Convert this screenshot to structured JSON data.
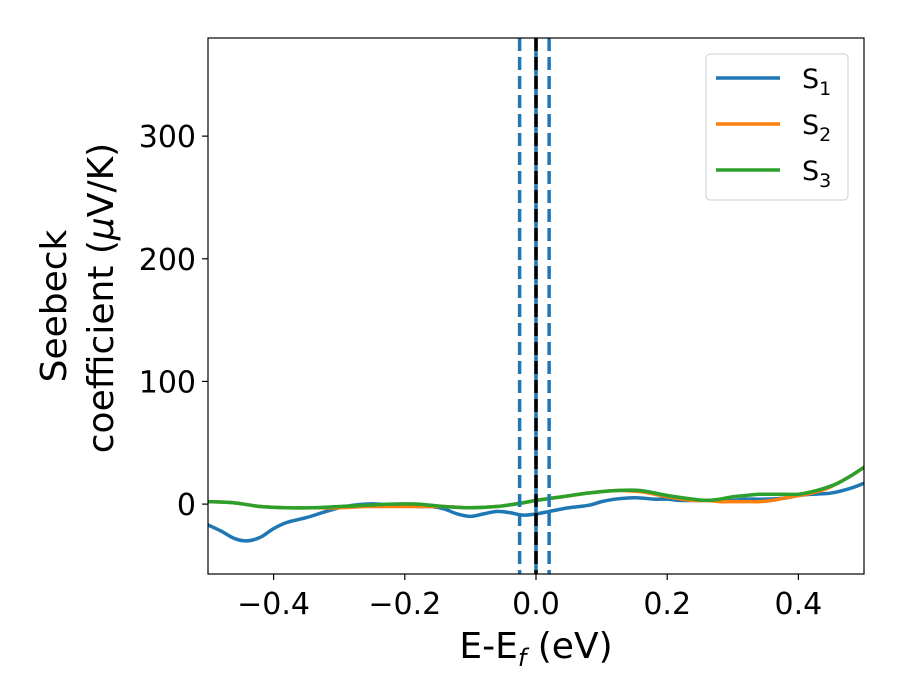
{
  "chart_data": {
    "type": "line",
    "title": "",
    "xlabel": "E-E",
    "xlabel_sub": "f",
    "xlabel_unit": " (eV)",
    "ylabel_line1": "Seebeck",
    "ylabel_line2_prefix": "coefficient  (",
    "ylabel_mu": "μ",
    "ylabel_line2_suffix": "V/K)",
    "xlim": [
      -0.5,
      0.5
    ],
    "ylim": [
      -57,
      380
    ],
    "xticks": [
      -0.4,
      -0.2,
      0.0,
      0.2,
      0.4
    ],
    "xtick_labels": [
      "−0.4",
      "−0.2",
      "0.0",
      "0.2",
      "0.4"
    ],
    "yticks": [
      0,
      100,
      200,
      300
    ],
    "ytick_labels": [
      "0",
      "100",
      "200",
      "300"
    ],
    "grid": false,
    "legend_position": "top-right",
    "vlines": [
      {
        "x": -0.025,
        "style": "dashed",
        "color": "#1f77b4"
      },
      {
        "x": 0.0,
        "style": "solid",
        "color": "#1f77b4"
      },
      {
        "x": 0.0,
        "style": "dashed",
        "color": "#000000"
      },
      {
        "x": 0.02,
        "style": "dashed",
        "color": "#1f77b4"
      }
    ],
    "series": [
      {
        "name": "S",
        "sub": "1",
        "color": "#1f77b4",
        "x": [
          -0.5,
          -0.48,
          -0.46,
          -0.44,
          -0.42,
          -0.4,
          -0.38,
          -0.35,
          -0.32,
          -0.3,
          -0.28,
          -0.26,
          -0.24,
          -0.22,
          -0.2,
          -0.18,
          -0.16,
          -0.14,
          -0.12,
          -0.1,
          -0.08,
          -0.06,
          -0.04,
          -0.02,
          0.0,
          0.02,
          0.05,
          0.08,
          0.1,
          0.12,
          0.14,
          0.16,
          0.18,
          0.2,
          0.22,
          0.25,
          0.28,
          0.3,
          0.32,
          0.35,
          0.38,
          0.4,
          0.42,
          0.45,
          0.48,
          0.5
        ],
        "y": [
          -17,
          -22,
          -28,
          -30,
          -27,
          -20,
          -15,
          -11,
          -6,
          -3,
          -1,
          0,
          0,
          -1,
          -1,
          -2,
          -2,
          -4,
          -8,
          -10,
          -8,
          -6,
          -7,
          -9,
          -8,
          -6,
          -3,
          -1,
          2,
          4,
          5,
          5,
          4,
          4,
          3,
          3,
          3,
          3,
          4,
          4,
          5,
          7,
          8,
          9,
          13,
          17
        ]
      },
      {
        "name": "S",
        "sub": "2",
        "color": "#ff7f0e",
        "x": [
          -0.5,
          -0.46,
          -0.42,
          -0.38,
          -0.34,
          -0.3,
          -0.26,
          -0.22,
          -0.18,
          -0.14,
          -0.1,
          -0.06,
          -0.02,
          0.0,
          0.04,
          0.08,
          0.12,
          0.16,
          0.2,
          0.24,
          0.26,
          0.28,
          0.3,
          0.32,
          0.34,
          0.36,
          0.38,
          0.4,
          0.42,
          0.44,
          0.46,
          0.48,
          0.5
        ],
        "y": [
          2,
          1,
          -2,
          -3,
          -3,
          -3,
          -2,
          -2,
          -2,
          -2,
          -3,
          -2,
          1,
          3,
          6,
          9,
          11,
          10,
          6,
          3,
          3,
          2,
          2,
          2,
          2,
          3,
          5,
          7,
          9,
          12,
          17,
          23,
          30
        ]
      },
      {
        "name": "S",
        "sub": "3",
        "color": "#2ca02c",
        "x": [
          -0.5,
          -0.46,
          -0.42,
          -0.38,
          -0.34,
          -0.3,
          -0.26,
          -0.22,
          -0.18,
          -0.14,
          -0.1,
          -0.06,
          -0.02,
          0.0,
          0.04,
          0.08,
          0.12,
          0.16,
          0.2,
          0.24,
          0.26,
          0.28,
          0.3,
          0.32,
          0.34,
          0.36,
          0.38,
          0.4,
          0.42,
          0.44,
          0.46,
          0.48,
          0.5
        ],
        "y": [
          2,
          1,
          -2,
          -3,
          -3,
          -2,
          -1,
          0,
          0,
          -2,
          -3,
          -2,
          1,
          3,
          6,
          9,
          11,
          11,
          7,
          4,
          3,
          4,
          6,
          7,
          8,
          8,
          8,
          8,
          10,
          13,
          17,
          23,
          30
        ]
      }
    ]
  }
}
